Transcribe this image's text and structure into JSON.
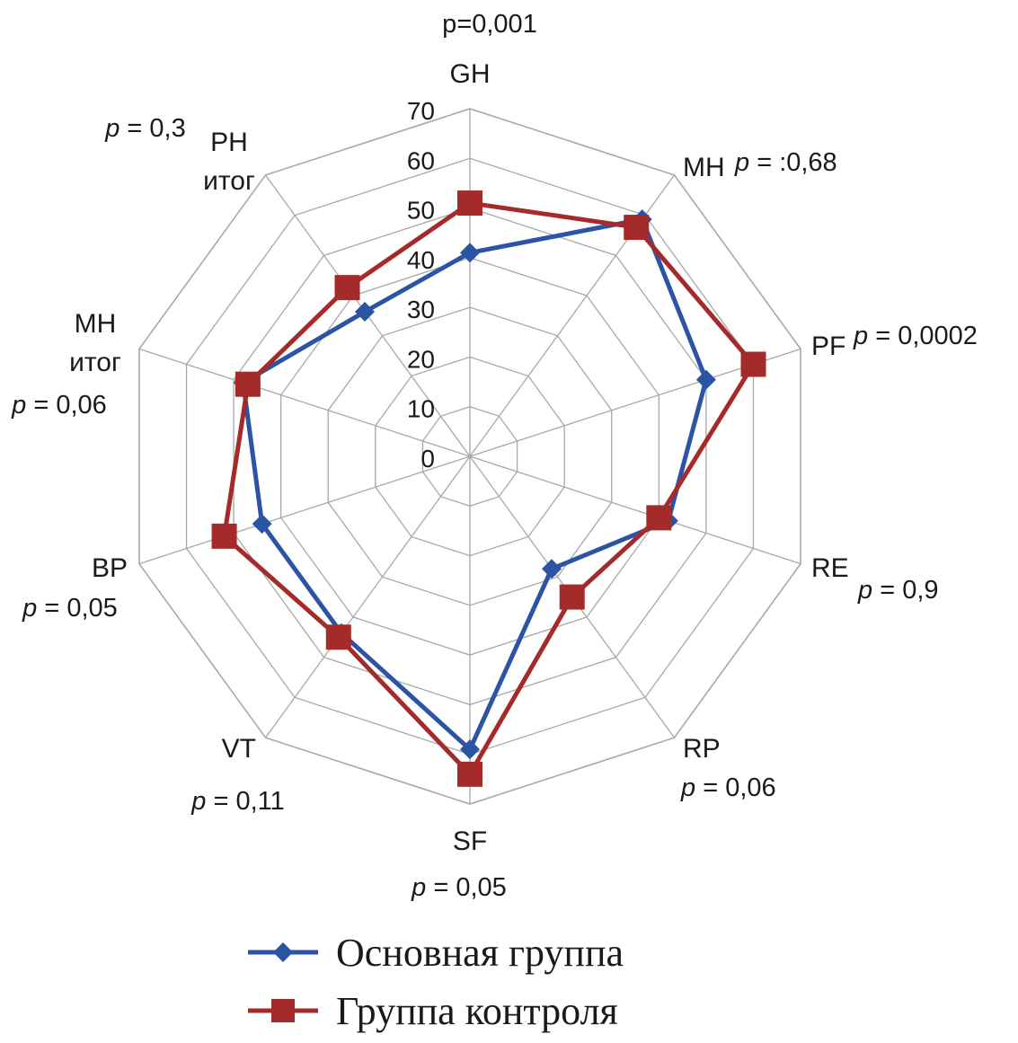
{
  "chart_data": {
    "type": "radar",
    "axes": [
      {
        "label": [
          "GH"
        ],
        "p_var": "p",
        "p_value": "=0,001",
        "p_style": "plain"
      },
      {
        "label": [
          "MH"
        ],
        "p_var": "p",
        "p_value": " = :0,68",
        "p_style": "italic"
      },
      {
        "label": [
          "PF"
        ],
        "p_var": "p",
        "p_value": " = 0,0002",
        "p_style": "italic"
      },
      {
        "label": [
          "RE"
        ],
        "p_var": "p",
        "p_value": " = 0,9",
        "p_style": "italic"
      },
      {
        "label": [
          "RP"
        ],
        "p_var": "p",
        "p_value": " = 0,06",
        "p_style": "italic"
      },
      {
        "label": [
          "SF"
        ],
        "p_var": "p",
        "p_value": " = 0,05",
        "p_style": "italic"
      },
      {
        "label": [
          "VT"
        ],
        "p_var": "p",
        "p_value": " = 0,11",
        "p_style": "italic"
      },
      {
        "label": [
          "BP"
        ],
        "p_var": "p",
        "p_value": " = 0,05",
        "p_style": "italic"
      },
      {
        "label": [
          "MH",
          "итог"
        ],
        "p_var": "p",
        "p_value": " = 0,06",
        "p_style": "italic"
      },
      {
        "label": [
          "PH",
          "итог"
        ],
        "p_var": "p",
        "p_value": " = 0,3",
        "p_style": "italic"
      }
    ],
    "ticks": [
      "0",
      "10",
      "20",
      "30",
      "40",
      "50",
      "60",
      "70"
    ],
    "range": [
      0,
      70
    ],
    "series": [
      {
        "name": "Основная группа",
        "color": "#2b54a5",
        "marker": "diamond",
        "values": [
          41,
          59,
          50,
          42,
          28,
          59,
          44,
          44,
          48,
          36
        ]
      },
      {
        "name": "Группа контроля",
        "color": "#a52a2a",
        "marker": "square",
        "values": [
          51,
          57,
          60,
          40,
          35,
          64,
          45,
          52,
          47,
          42
        ]
      }
    ],
    "legend_position": "bottom"
  }
}
